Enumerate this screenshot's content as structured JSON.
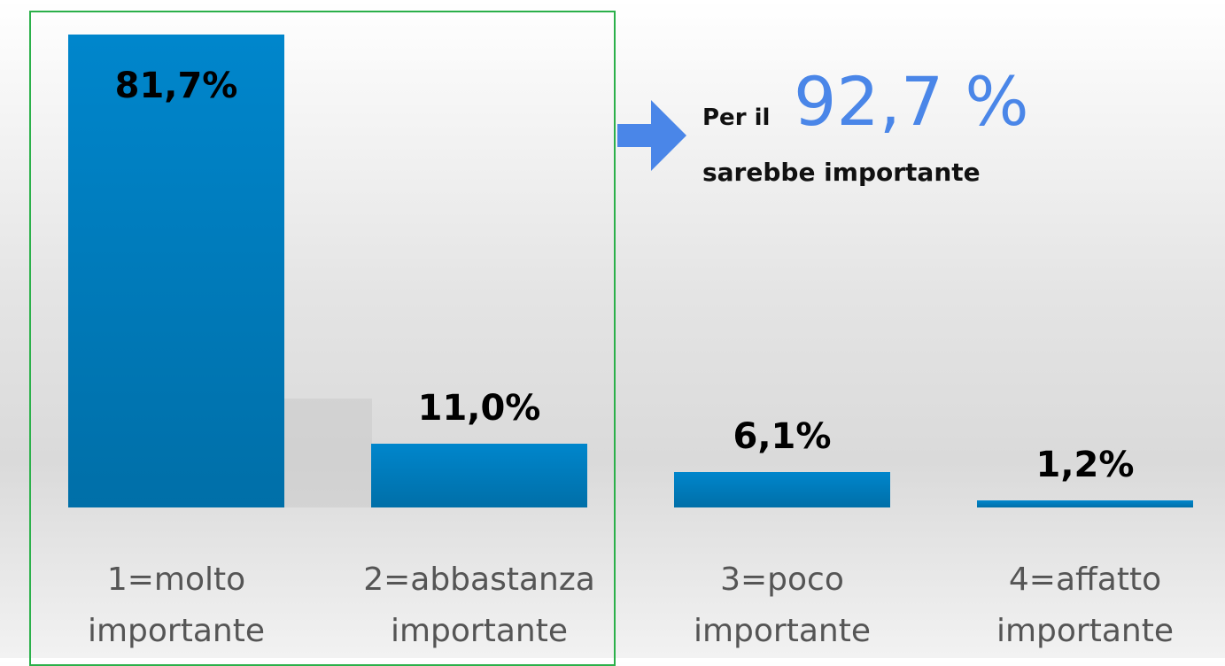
{
  "chart_data": {
    "type": "bar",
    "categories": [
      "1=molto importante",
      "2=abbastanza importante",
      "3=poco importante",
      "4=affatto importante"
    ],
    "values": [
      81.7,
      11.0,
      6.1,
      1.2
    ],
    "value_labels": [
      "81,7%",
      "11,0%",
      "6,1%",
      "1,2%"
    ],
    "color": "#0086cc",
    "annotation": {
      "prefix": "Per il",
      "value": "92,7 %",
      "suffix": "sarebbe importante",
      "color": "#4a86e8"
    }
  }
}
